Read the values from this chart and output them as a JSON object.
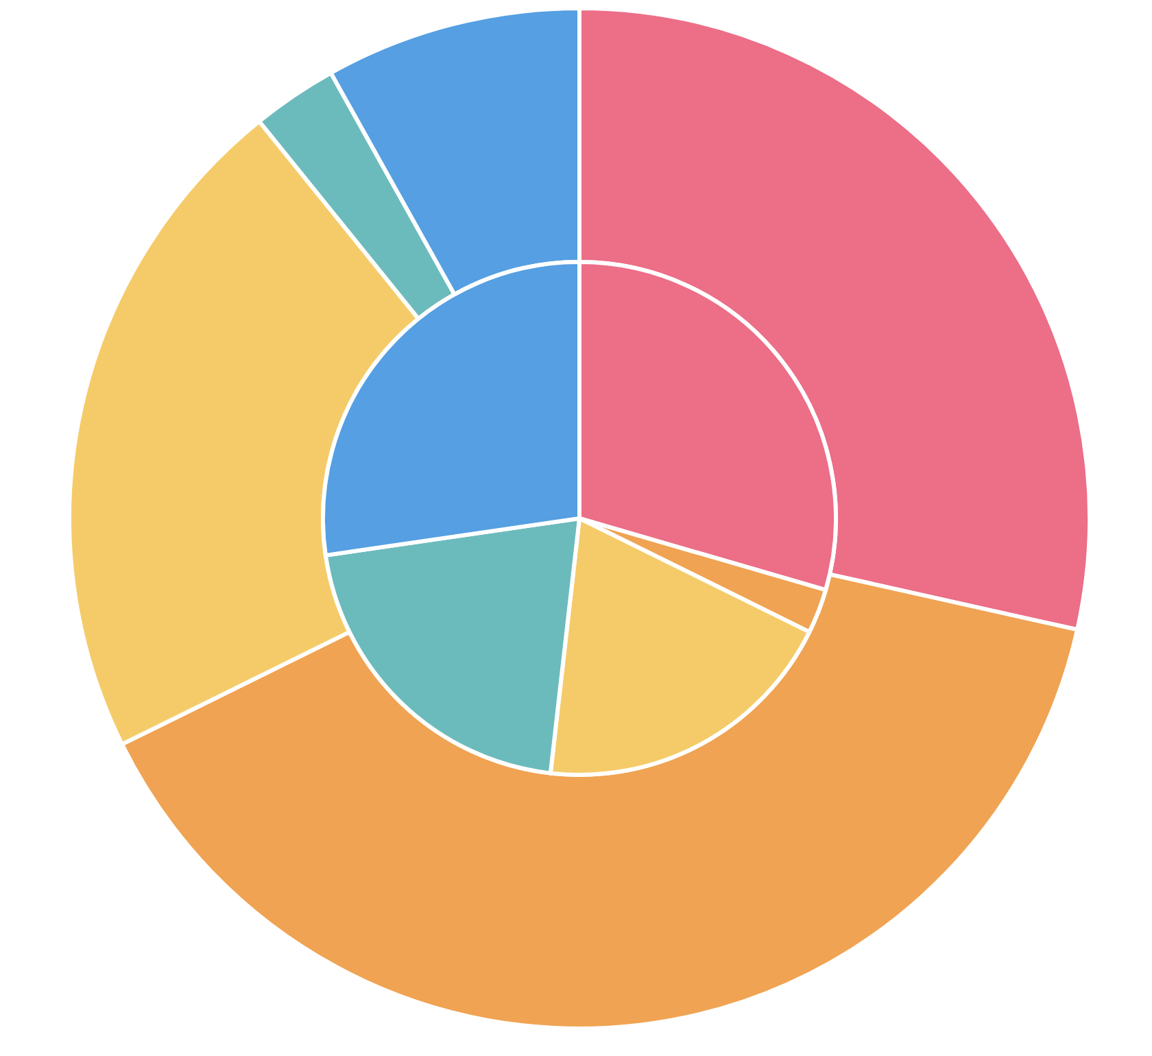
{
  "chart_data": {
    "type": "donut",
    "categories": [
      null,
      null,
      null,
      null,
      null
    ],
    "colors": [
      "#ec6e87",
      "#f0a352",
      "#f5cb69",
      "#6cbbbc",
      "#559fe2"
    ],
    "series": [
      {
        "values": [
          28.5,
          39.2,
          21.5,
          2.7,
          8.1
        ]
      },
      {
        "type": "pie",
        "values": [
          29.5,
          2.8,
          19.5,
          20.9,
          27.3
        ]
      }
    ]
  }
}
